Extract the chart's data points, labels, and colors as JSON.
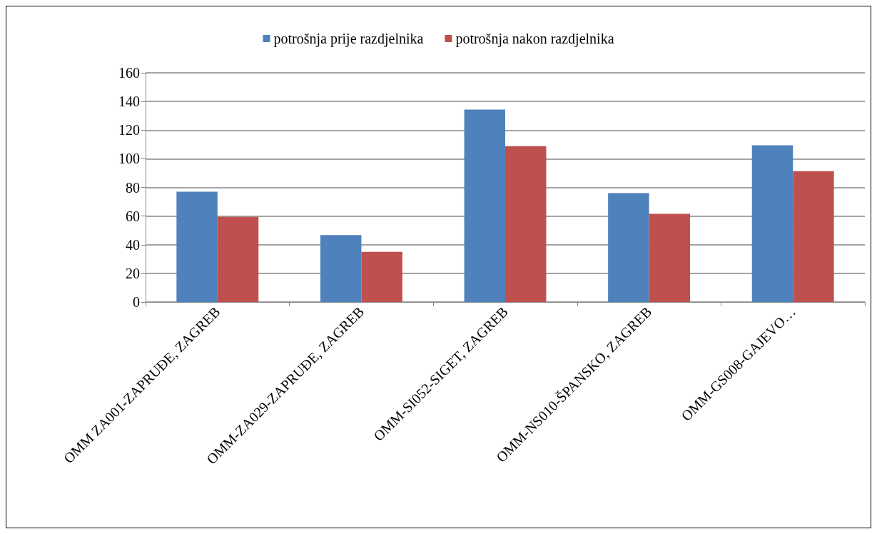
{
  "chart_data": {
    "type": "bar",
    "categories": [
      "OMM ZA001-ZAPRUĐE, ZAGREB",
      "OMM-ZA029-ZAPRUĐE, ZAGREB",
      "OMM-SI052-SIGET, ZAGREB",
      "OMM-NS010-ŠPANSKO, ZAGREB",
      "OMM-GS008-GAJEVO…"
    ],
    "series": [
      {
        "name": "potrošnja prije razdjelnika",
        "color": "#4f81bd",
        "values": [
          77,
          46.7,
          134.3,
          76,
          109.4
        ]
      },
      {
        "name": "potrošnja nakon razdjelnika",
        "color": "#c0504d",
        "values": [
          59.5,
          35,
          108.8,
          61.5,
          91.4
        ]
      }
    ],
    "ylim": [
      0,
      160
    ],
    "yticks": [
      0,
      20,
      40,
      60,
      80,
      100,
      120,
      140,
      160
    ],
    "grid": "y",
    "legend": "top"
  }
}
